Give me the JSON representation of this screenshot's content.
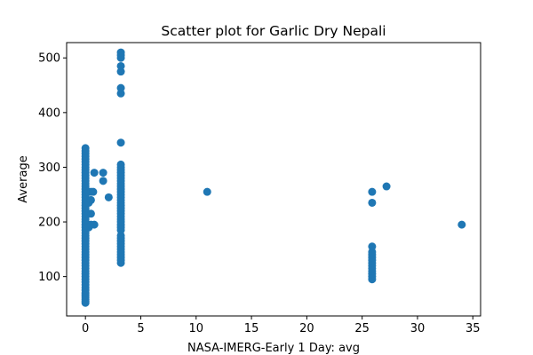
{
  "chart_data": {
    "type": "scatter",
    "title": "Scatter plot for Garlic Dry Nepali",
    "xlabel": "NASA-IMERG-Early 1 Day: avg",
    "ylabel": "Average",
    "xlim": [
      -1.7,
      35.7
    ],
    "ylim": [
      28,
      528
    ],
    "x_ticks": [
      0,
      5,
      10,
      15,
      20,
      25,
      30,
      35
    ],
    "y_ticks": [
      100,
      200,
      300,
      400,
      500
    ],
    "grid": false,
    "marker_color": "#1f77b4",
    "points": [
      [
        0,
        52
      ],
      [
        0,
        55
      ],
      [
        0,
        58
      ],
      [
        0,
        62
      ],
      [
        0,
        66
      ],
      [
        0,
        70
      ],
      [
        0,
        75
      ],
      [
        0,
        80
      ],
      [
        0,
        85
      ],
      [
        0,
        90
      ],
      [
        0,
        95
      ],
      [
        0,
        100
      ],
      [
        0,
        105
      ],
      [
        0,
        110
      ],
      [
        0,
        115
      ],
      [
        0,
        120
      ],
      [
        0,
        125
      ],
      [
        0,
        130
      ],
      [
        0,
        135
      ],
      [
        0,
        140
      ],
      [
        0,
        145
      ],
      [
        0,
        150
      ],
      [
        0,
        155
      ],
      [
        0,
        160
      ],
      [
        0,
        165
      ],
      [
        0,
        170
      ],
      [
        0,
        175
      ],
      [
        0,
        180
      ],
      [
        0,
        185
      ],
      [
        0,
        190
      ],
      [
        0,
        195
      ],
      [
        0,
        200
      ],
      [
        0,
        205
      ],
      [
        0,
        210
      ],
      [
        0,
        215
      ],
      [
        0,
        220
      ],
      [
        0,
        225
      ],
      [
        0,
        230
      ],
      [
        0,
        235
      ],
      [
        0,
        240
      ],
      [
        0,
        245
      ],
      [
        0,
        250
      ],
      [
        0,
        255
      ],
      [
        0,
        260
      ],
      [
        0,
        265
      ],
      [
        0,
        270
      ],
      [
        0,
        275
      ],
      [
        0,
        280
      ],
      [
        0,
        285
      ],
      [
        0,
        290
      ],
      [
        0,
        295
      ],
      [
        0,
        300
      ],
      [
        0,
        305
      ],
      [
        0,
        310
      ],
      [
        0,
        315
      ],
      [
        0,
        320
      ],
      [
        0,
        325
      ],
      [
        0,
        330
      ],
      [
        0,
        335
      ],
      [
        0.3,
        190
      ],
      [
        0.3,
        215
      ],
      [
        0.3,
        235
      ],
      [
        0.3,
        255
      ],
      [
        0.5,
        195
      ],
      [
        0.5,
        215
      ],
      [
        0.5,
        240
      ],
      [
        0.5,
        255
      ],
      [
        0.8,
        195
      ],
      [
        0.8,
        290
      ],
      [
        0.7,
        255
      ],
      [
        1.6,
        275
      ],
      [
        1.6,
        290
      ],
      [
        2.1,
        245
      ],
      [
        3.2,
        125
      ],
      [
        3.2,
        130
      ],
      [
        3.2,
        135
      ],
      [
        3.2,
        140
      ],
      [
        3.2,
        145
      ],
      [
        3.2,
        150
      ],
      [
        3.2,
        155
      ],
      [
        3.2,
        160
      ],
      [
        3.2,
        165
      ],
      [
        3.2,
        170
      ],
      [
        3.2,
        175
      ],
      [
        3.2,
        185
      ],
      [
        3.2,
        190
      ],
      [
        3.2,
        195
      ],
      [
        3.2,
        200
      ],
      [
        3.2,
        205
      ],
      [
        3.2,
        210
      ],
      [
        3.2,
        215
      ],
      [
        3.2,
        220
      ],
      [
        3.2,
        225
      ],
      [
        3.2,
        230
      ],
      [
        3.2,
        235
      ],
      [
        3.2,
        240
      ],
      [
        3.2,
        245
      ],
      [
        3.2,
        250
      ],
      [
        3.2,
        255
      ],
      [
        3.2,
        260
      ],
      [
        3.2,
        265
      ],
      [
        3.2,
        270
      ],
      [
        3.2,
        275
      ],
      [
        3.2,
        280
      ],
      [
        3.2,
        285
      ],
      [
        3.2,
        290
      ],
      [
        3.2,
        295
      ],
      [
        3.2,
        300
      ],
      [
        3.2,
        305
      ],
      [
        3.2,
        345
      ],
      [
        3.2,
        435
      ],
      [
        3.2,
        445
      ],
      [
        3.2,
        475
      ],
      [
        3.2,
        485
      ],
      [
        3.2,
        500
      ],
      [
        3.2,
        505
      ],
      [
        3.2,
        510
      ],
      [
        11.0,
        255
      ],
      [
        25.9,
        95
      ],
      [
        25.9,
        100
      ],
      [
        25.9,
        105
      ],
      [
        25.9,
        110
      ],
      [
        25.9,
        115
      ],
      [
        25.9,
        120
      ],
      [
        25.9,
        125
      ],
      [
        25.9,
        130
      ],
      [
        25.9,
        135
      ],
      [
        25.9,
        140
      ],
      [
        25.9,
        145
      ],
      [
        25.9,
        155
      ],
      [
        25.9,
        235
      ],
      [
        25.9,
        255
      ],
      [
        27.2,
        265
      ],
      [
        34.0,
        195
      ]
    ]
  }
}
